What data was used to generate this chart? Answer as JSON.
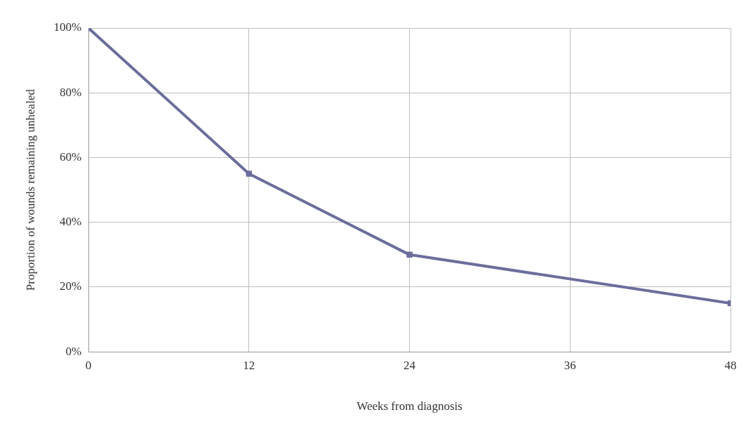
{
  "chart_data": {
    "type": "line",
    "xlabel": "Weeks from diagnosis",
    "ylabel": "Proportion of wounds remaining unhealed",
    "x": [
      0,
      12,
      24,
      48
    ],
    "series": [
      {
        "color": "#6b6e9b",
        "values": [
          100,
          55,
          30,
          15
        ]
      }
    ],
    "xlim": [
      0,
      48
    ],
    "xticks": [
      0,
      12,
      24,
      36,
      48
    ],
    "ylim": [
      0,
      100
    ],
    "yticks": [
      {
        "value": 0,
        "label": "0%"
      },
      {
        "value": 20,
        "label": "20%"
      },
      {
        "value": 40,
        "label": "40%"
      },
      {
        "value": 60,
        "label": "60%"
      },
      {
        "value": 80,
        "label": "80%"
      },
      {
        "value": 100,
        "label": "100%"
      }
    ],
    "grid": true,
    "marker": "square",
    "line_style": "solid",
    "legend": false
  }
}
